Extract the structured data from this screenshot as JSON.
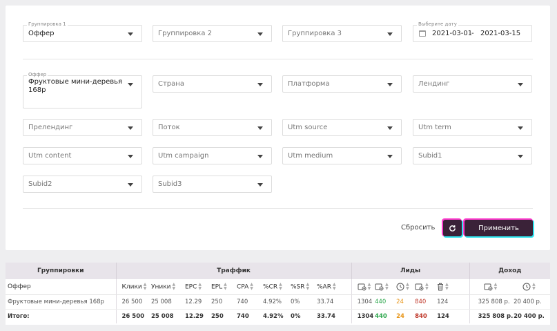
{
  "filters": {
    "grouping1": {
      "label": "Группировка 1",
      "value": "Оффер"
    },
    "grouping2": {
      "value": "Группировка 2"
    },
    "grouping3": {
      "value": "Группировка 3"
    },
    "date": {
      "label": "Выберите дату",
      "from": "2021-03-01",
      "to": "2021-03-15"
    },
    "offer": {
      "label": "Оффер",
      "value": "Фруктовые мини-деревья 168р"
    },
    "country": "Страна",
    "platform": "Платформа",
    "landing": "Лендинг",
    "prelanding": "Прелендинг",
    "stream": "Поток",
    "utm_source": "Utm source",
    "utm_term": "Utm term",
    "utm_content": "Utm content",
    "utm_campaign": "Utm campaign",
    "utm_medium": "Utm medium",
    "subid1": "Subid1",
    "subid2": "Subid2",
    "subid3": "Subid3"
  },
  "actions": {
    "reset": "Сбросить",
    "apply": "Применить"
  },
  "table": {
    "groups": {
      "grouping": "Группировки",
      "traffic": "Траффик",
      "leads": "Лиды",
      "income": "Доход"
    },
    "cols": {
      "offer": "Оффер",
      "clicks": "Клики",
      "uniques": "Уники",
      "epc": "EPC",
      "epl": "EPL",
      "cpa": "CPA",
      "cr": "%CR",
      "sr": "%SR",
      "ar": "%AR"
    },
    "rows": [
      {
        "name": "Фруктовые мини-деревья 168р",
        "clicks": "26 500",
        "uniques": "25 008",
        "epc": "12.29",
        "epl": "250",
        "cpa": "740",
        "cr": "4.92%",
        "sr": "0%",
        "ar": "33.74",
        "l1": "1304",
        "l2": "440",
        "l3": "24",
        "l4": "840",
        "l5": "124",
        "i1": "325 808 р.",
        "i2": "20 400 р."
      }
    ],
    "total": {
      "name": "Итого:",
      "clicks": "26 500",
      "uniques": "25 008",
      "epc": "12.29",
      "epl": "250",
      "cpa": "740",
      "cr": "4.92%",
      "sr": "0%",
      "ar": "33.74",
      "l1": "1304",
      "l2": "440",
      "l3": "24",
      "l4": "840",
      "l5": "124",
      "i1": "325 808 р.",
      "i2": "20 400 р."
    }
  },
  "icons": {
    "calendar": "calendar-icon",
    "refresh": "refresh-icon",
    "caret": "chevron-down-icon"
  },
  "colors": {
    "accent": "#3a2238",
    "green": "#2fa84f",
    "orange": "#e8961a",
    "red": "#c0392b"
  }
}
